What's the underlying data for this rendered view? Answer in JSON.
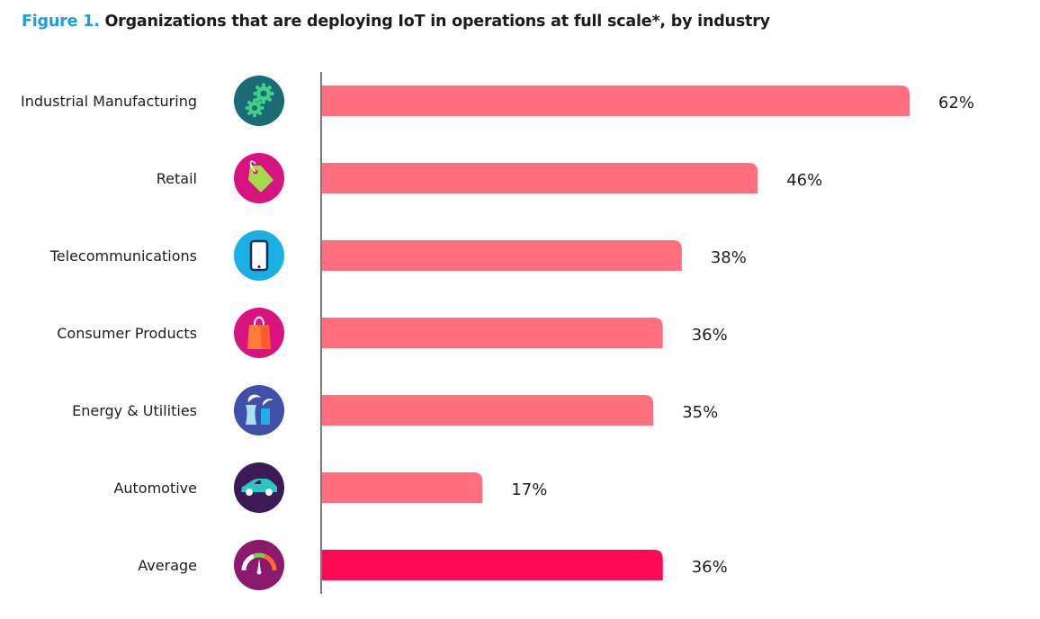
{
  "figure_label": "Figure 1.",
  "title": "Organizations that are deploying IoT in operations at full scale*, by industry",
  "chart_data": {
    "type": "bar",
    "orientation": "horizontal",
    "categories": [
      "Industrial Manufacturing",
      "Retail",
      "Telecommunications",
      "Consumer Products",
      "Energy & Utilities",
      "Automotive",
      "Average"
    ],
    "values": [
      62,
      46,
      38,
      36,
      35,
      17,
      36
    ],
    "value_labels": [
      "62%",
      "46%",
      "38%",
      "36%",
      "35%",
      "17%",
      "36%"
    ],
    "icons": [
      "gears-icon",
      "price-tag-icon",
      "smartphone-icon",
      "shopping-bag-icon",
      "power-plant-icon",
      "car-icon",
      "speedometer-icon"
    ],
    "icon_colors": [
      "#1a6b73",
      "#d6137f",
      "#1bb0e3",
      "#d6137f",
      "#4050a8",
      "#3c1a56",
      "#8b1a6e"
    ],
    "bar_color": "#ff6f7d",
    "highlight_color": "#ff0a55",
    "highlight_category": "Average",
    "xlim": [
      0,
      62
    ],
    "grid": false
  }
}
